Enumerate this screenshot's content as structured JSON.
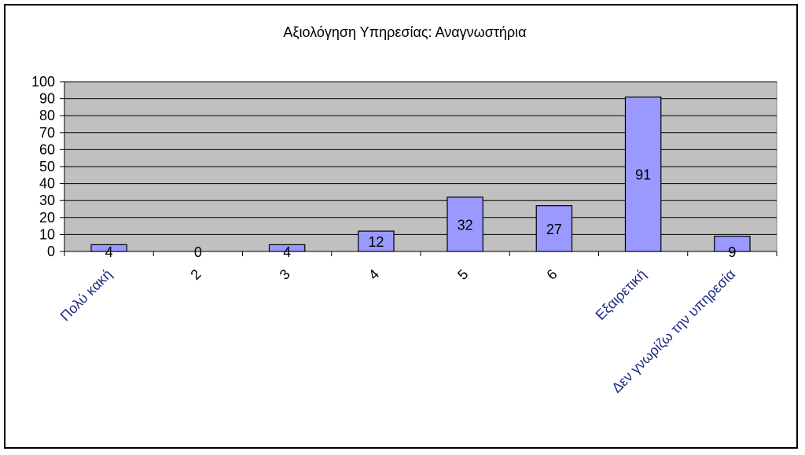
{
  "chart_data": {
    "type": "bar",
    "title": "Αξιολόγηση Υπηρεσίας: Αναγνωστήρια",
    "categories": [
      "Πολύ κακή",
      "2",
      "3",
      "4",
      "5",
      "6",
      "Εξαιρετική",
      "Δεν γνωρίζω την υπηρεσία"
    ],
    "values": [
      4,
      0,
      4,
      12,
      32,
      27,
      91,
      9
    ],
    "ylim": [
      0,
      100
    ],
    "yticks": [
      0,
      10,
      20,
      30,
      40,
      50,
      60,
      70,
      80,
      90,
      100
    ],
    "xlabel": "",
    "ylabel": "",
    "grid": true,
    "legend": "none",
    "colors": {
      "plot_background": "#c0c0c0",
      "bar_fill": "#9999ff",
      "bar_stroke": "#000000",
      "gridline": "#000000",
      "category_text_slanted": "#1a2a80"
    }
  }
}
